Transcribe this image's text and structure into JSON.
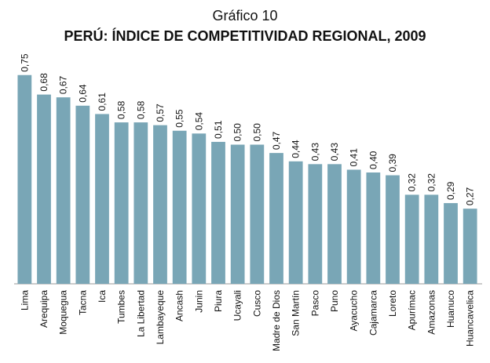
{
  "chart_data": {
    "type": "bar",
    "title": "Gráfico 10",
    "subtitle": "PERÚ: ÍNDICE DE COMPETITIVIDAD REGIONAL, 2009",
    "categories": [
      "Lima",
      "Arequipa",
      "Moquegua",
      "Tacna",
      "Ica",
      "Tumbes",
      "La Libertad",
      "Lambayeque",
      "Ancash",
      "Junin",
      "Piura",
      "Ucayali",
      "Cusco",
      "Madre de Dios",
      "San Martín",
      "Pasco",
      "Puno",
      "Ayacucho",
      "Cajamarca",
      "Loreto",
      "Apurímac",
      "Amazonas",
      "Huanuco",
      "Huancavelica"
    ],
    "values": [
      0.75,
      0.68,
      0.67,
      0.64,
      0.61,
      0.58,
      0.58,
      0.57,
      0.55,
      0.54,
      0.51,
      0.5,
      0.5,
      0.47,
      0.44,
      0.43,
      0.43,
      0.41,
      0.4,
      0.39,
      0.32,
      0.32,
      0.29,
      0.27
    ],
    "value_labels": [
      "0,75",
      "0,68",
      "0,67",
      "0,64",
      "0,61",
      "0,58",
      "0,58",
      "0,57",
      "0,55",
      "0,54",
      "0,51",
      "0,50",
      "0,50",
      "0,47",
      "0,44",
      "0,43",
      "0,43",
      "0,41",
      "0,40",
      "0,39",
      "0,32",
      "0,32",
      "0,29",
      "0,27"
    ],
    "color": "#79a6b6",
    "ylim": [
      0,
      0.8
    ]
  }
}
